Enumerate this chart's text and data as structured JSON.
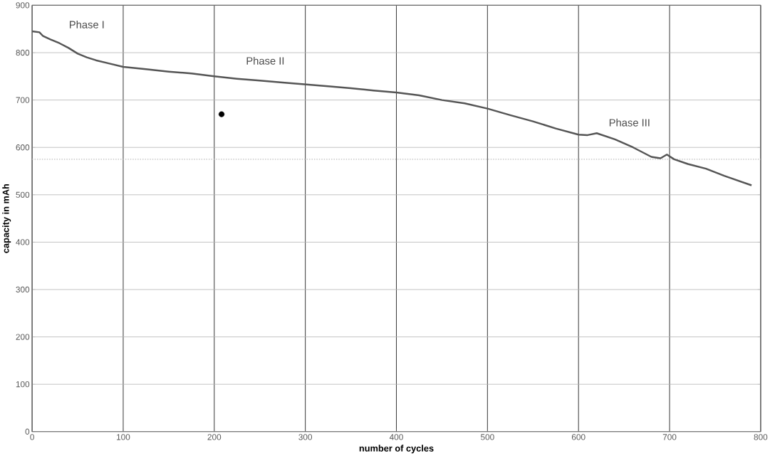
{
  "chart_data": {
    "type": "line",
    "xlabel": "number of cycles",
    "ylabel": "capacity in mAh",
    "xlim": [
      0,
      800
    ],
    "ylim": [
      0,
      900
    ],
    "xticks": [
      0,
      100,
      200,
      300,
      400,
      500,
      600,
      700,
      800
    ],
    "yticks": [
      0,
      100,
      200,
      300,
      400,
      500,
      600,
      700,
      800,
      900
    ],
    "grid": true,
    "series": [
      {
        "color": "#555555",
        "x": [
          0,
          8,
          12,
          20,
          30,
          40,
          50,
          60,
          70,
          85,
          100,
          125,
          150,
          175,
          200,
          225,
          250,
          275,
          300,
          325,
          350,
          375,
          400,
          425,
          450,
          475,
          500,
          525,
          550,
          575,
          600,
          610,
          620,
          640,
          660,
          680,
          690,
          697,
          705,
          720,
          740,
          760,
          790
        ],
        "values": [
          845,
          843,
          835,
          828,
          820,
          810,
          798,
          790,
          784,
          777,
          770,
          765,
          760,
          756,
          750,
          745,
          741,
          737,
          733,
          729,
          725,
          720,
          716,
          710,
          700,
          693,
          682,
          668,
          655,
          640,
          627,
          626,
          630,
          617,
          600,
          580,
          577,
          585,
          575,
          565,
          555,
          540,
          520
        ]
      },
      {
        "type": "scatter",
        "color": "#000000",
        "marker": "circle",
        "x": [
          208
        ],
        "values": [
          670
        ]
      }
    ],
    "ref_lines": [
      {
        "axis": "y",
        "value": 575,
        "color": "#bbbbbb",
        "line_style": "dotted"
      }
    ],
    "annotations": [
      "Phase I",
      "Phase II",
      "Phase III"
    ]
  }
}
